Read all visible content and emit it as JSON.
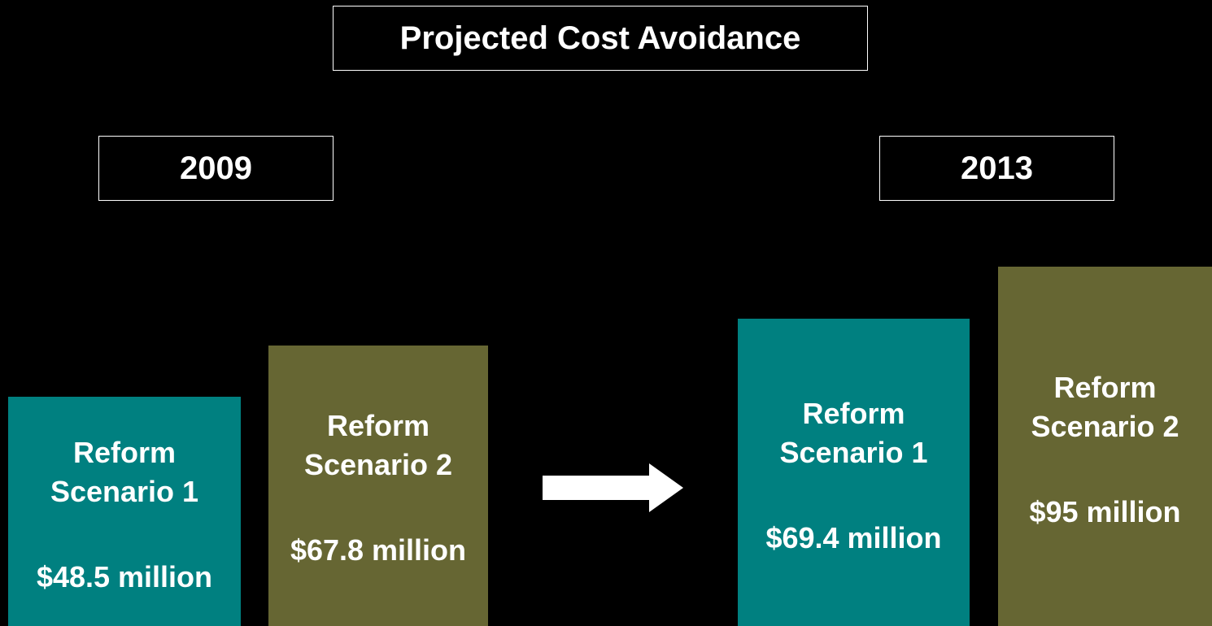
{
  "title": "Projected Cost Avoidance",
  "groups": [
    {
      "year": "2009",
      "items": [
        {
          "label": "Reform\nScenario 1",
          "value": "$48.5 million"
        },
        {
          "label": "Reform\nScenario 2",
          "value": "$67.8 million"
        }
      ]
    },
    {
      "year": "2013",
      "items": [
        {
          "label": "Reform\nScenario 1",
          "value": "$69.4 million"
        },
        {
          "label": "Reform\nScenario 2",
          "value": "$95 million"
        }
      ]
    }
  ]
}
